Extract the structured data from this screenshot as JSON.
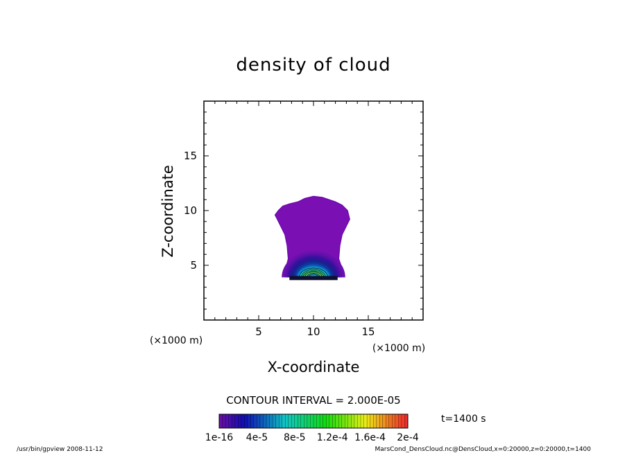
{
  "chart_data": {
    "type": "heatmap",
    "title": "density of cloud",
    "xlabel": "X-coordinate",
    "ylabel": "Z-coordinate",
    "x_unit": "(×1000 m)",
    "y_unit": "(×1000 m)",
    "xlim": [
      0,
      20
    ],
    "ylim": [
      0,
      20
    ],
    "x_ticks": [
      5,
      10,
      15
    ],
    "y_ticks": [
      5,
      10,
      15
    ],
    "contour_interval": "CONTOUR INTERVAL = 2.000E-05",
    "time_label": "t=1400 s",
    "colorbar": {
      "tick_labels": [
        "1e-16",
        "4e-5",
        "8e-5",
        "1.2e-4",
        "1.6e-4",
        "2e-4"
      ],
      "min": 1e-16,
      "max": 0.0002
    },
    "cloud_outline_x": [
      8.6,
      9.2,
      10.0,
      10.8,
      11.4,
      12.0,
      12.6,
      13.1,
      13.3,
      13.0,
      12.6,
      12.4,
      12.3,
      12.7,
      12.5,
      11.2,
      10.0,
      8.8,
      7.6,
      7.4,
      7.7,
      7.6,
      7.4,
      7.0,
      6.7,
      6.5,
      6.8,
      7.2,
      7.8
    ],
    "cloud_outline_z": [
      10.8,
      11.1,
      11.3,
      11.2,
      11.0,
      10.8,
      10.5,
      10.0,
      9.2,
      8.6,
      7.8,
      6.8,
      5.6,
      4.4,
      4.0,
      3.9,
      3.8,
      3.9,
      4.0,
      4.4,
      5.6,
      6.8,
      7.8,
      8.6,
      9.2,
      9.6,
      10.0,
      10.4,
      10.6
    ],
    "core_center": [
      10.0,
      4.3
    ],
    "levels": [
      {
        "rx": 2.9,
        "rz": 2.4,
        "color": "#6a10ae"
      },
      {
        "rx": 2.6,
        "rz": 2.2,
        "color": "#5a0fa8"
      },
      {
        "rx": 2.4,
        "rz": 2.0,
        "color": "#3f10a0"
      },
      {
        "rx": 2.2,
        "rz": 1.8,
        "color": "#2a1598"
      },
      {
        "rx": 2.0,
        "rz": 1.6,
        "color": "#1a2090"
      },
      {
        "rx": 1.8,
        "rz": 1.4,
        "color": "#10359a"
      },
      {
        "rx": 1.6,
        "rz": 1.2,
        "color": "#0a55b0"
      },
      {
        "rx": 1.5,
        "rz": 1.05,
        "color": "#0a7ac8"
      },
      {
        "rx": 1.4,
        "rz": 0.95,
        "color": "#10a0d8"
      },
      {
        "rx": 1.3,
        "rz": 0.85,
        "color": "#20c8d8"
      },
      {
        "rx": 1.1,
        "rz": 0.72,
        "color": "#30d8a8"
      },
      {
        "rx": 0.95,
        "rz": 0.6,
        "color": "#40e070"
      },
      {
        "rx": 0.8,
        "rz": 0.5,
        "color": "#60d060"
      },
      {
        "rx": 0.6,
        "rz": 0.38,
        "color": "#20c0d0"
      },
      {
        "rx": 0.45,
        "rz": 0.28,
        "color": "#10a8e0"
      }
    ],
    "footer_left": "/usr/bin/gpview  2008-11-12",
    "footer_right": "MarsCond_DensCloud.nc@DensCloud,x=0:20000,z=0:20000,t=1400"
  }
}
